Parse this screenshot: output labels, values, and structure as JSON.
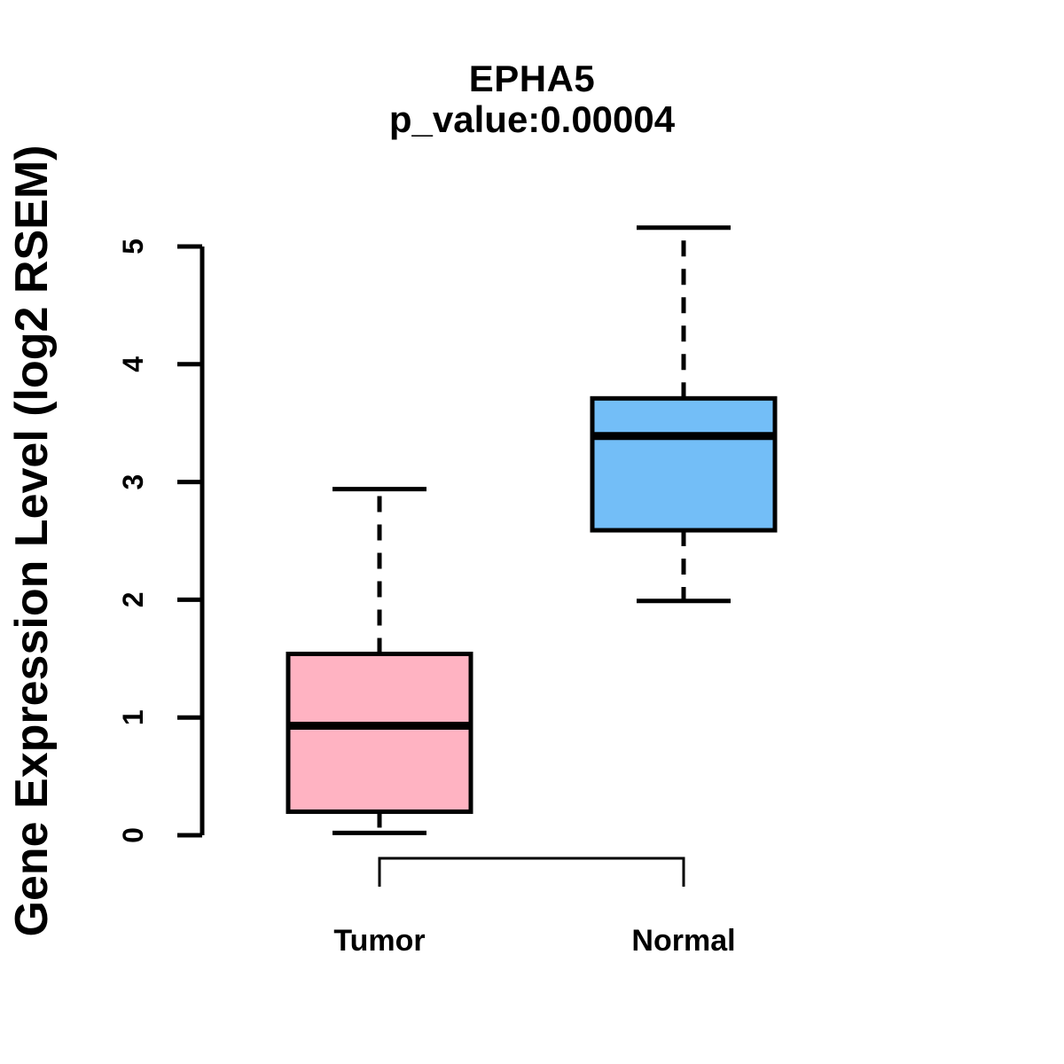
{
  "chart_data": {
    "type": "boxplot",
    "title": "EPHA5",
    "subtitle": "p_value:0.00004",
    "ylabel": "Gene Expression Level (log2 RSEM)",
    "xlabel": "",
    "categories": [
      "Tumor",
      "Normal"
    ],
    "yticks": [
      0,
      1,
      2,
      3,
      4,
      5
    ],
    "ylim": [
      0,
      5.2
    ],
    "grid": false,
    "legend": "none",
    "stroke_color": "#000000",
    "background_color": "#ffffff",
    "comparison_bracket": true,
    "series": [
      {
        "name": "Tumor",
        "whisker_low": 0.02,
        "q1": 0.2,
        "median": 0.93,
        "q3": 1.54,
        "whisker_high": 2.94,
        "fill_color": "#FFB3C2"
      },
      {
        "name": "Normal",
        "whisker_low": 1.99,
        "q1": 2.59,
        "median": 3.39,
        "q3": 3.71,
        "whisker_high": 5.16,
        "fill_color": "#73BEF7"
      }
    ]
  }
}
